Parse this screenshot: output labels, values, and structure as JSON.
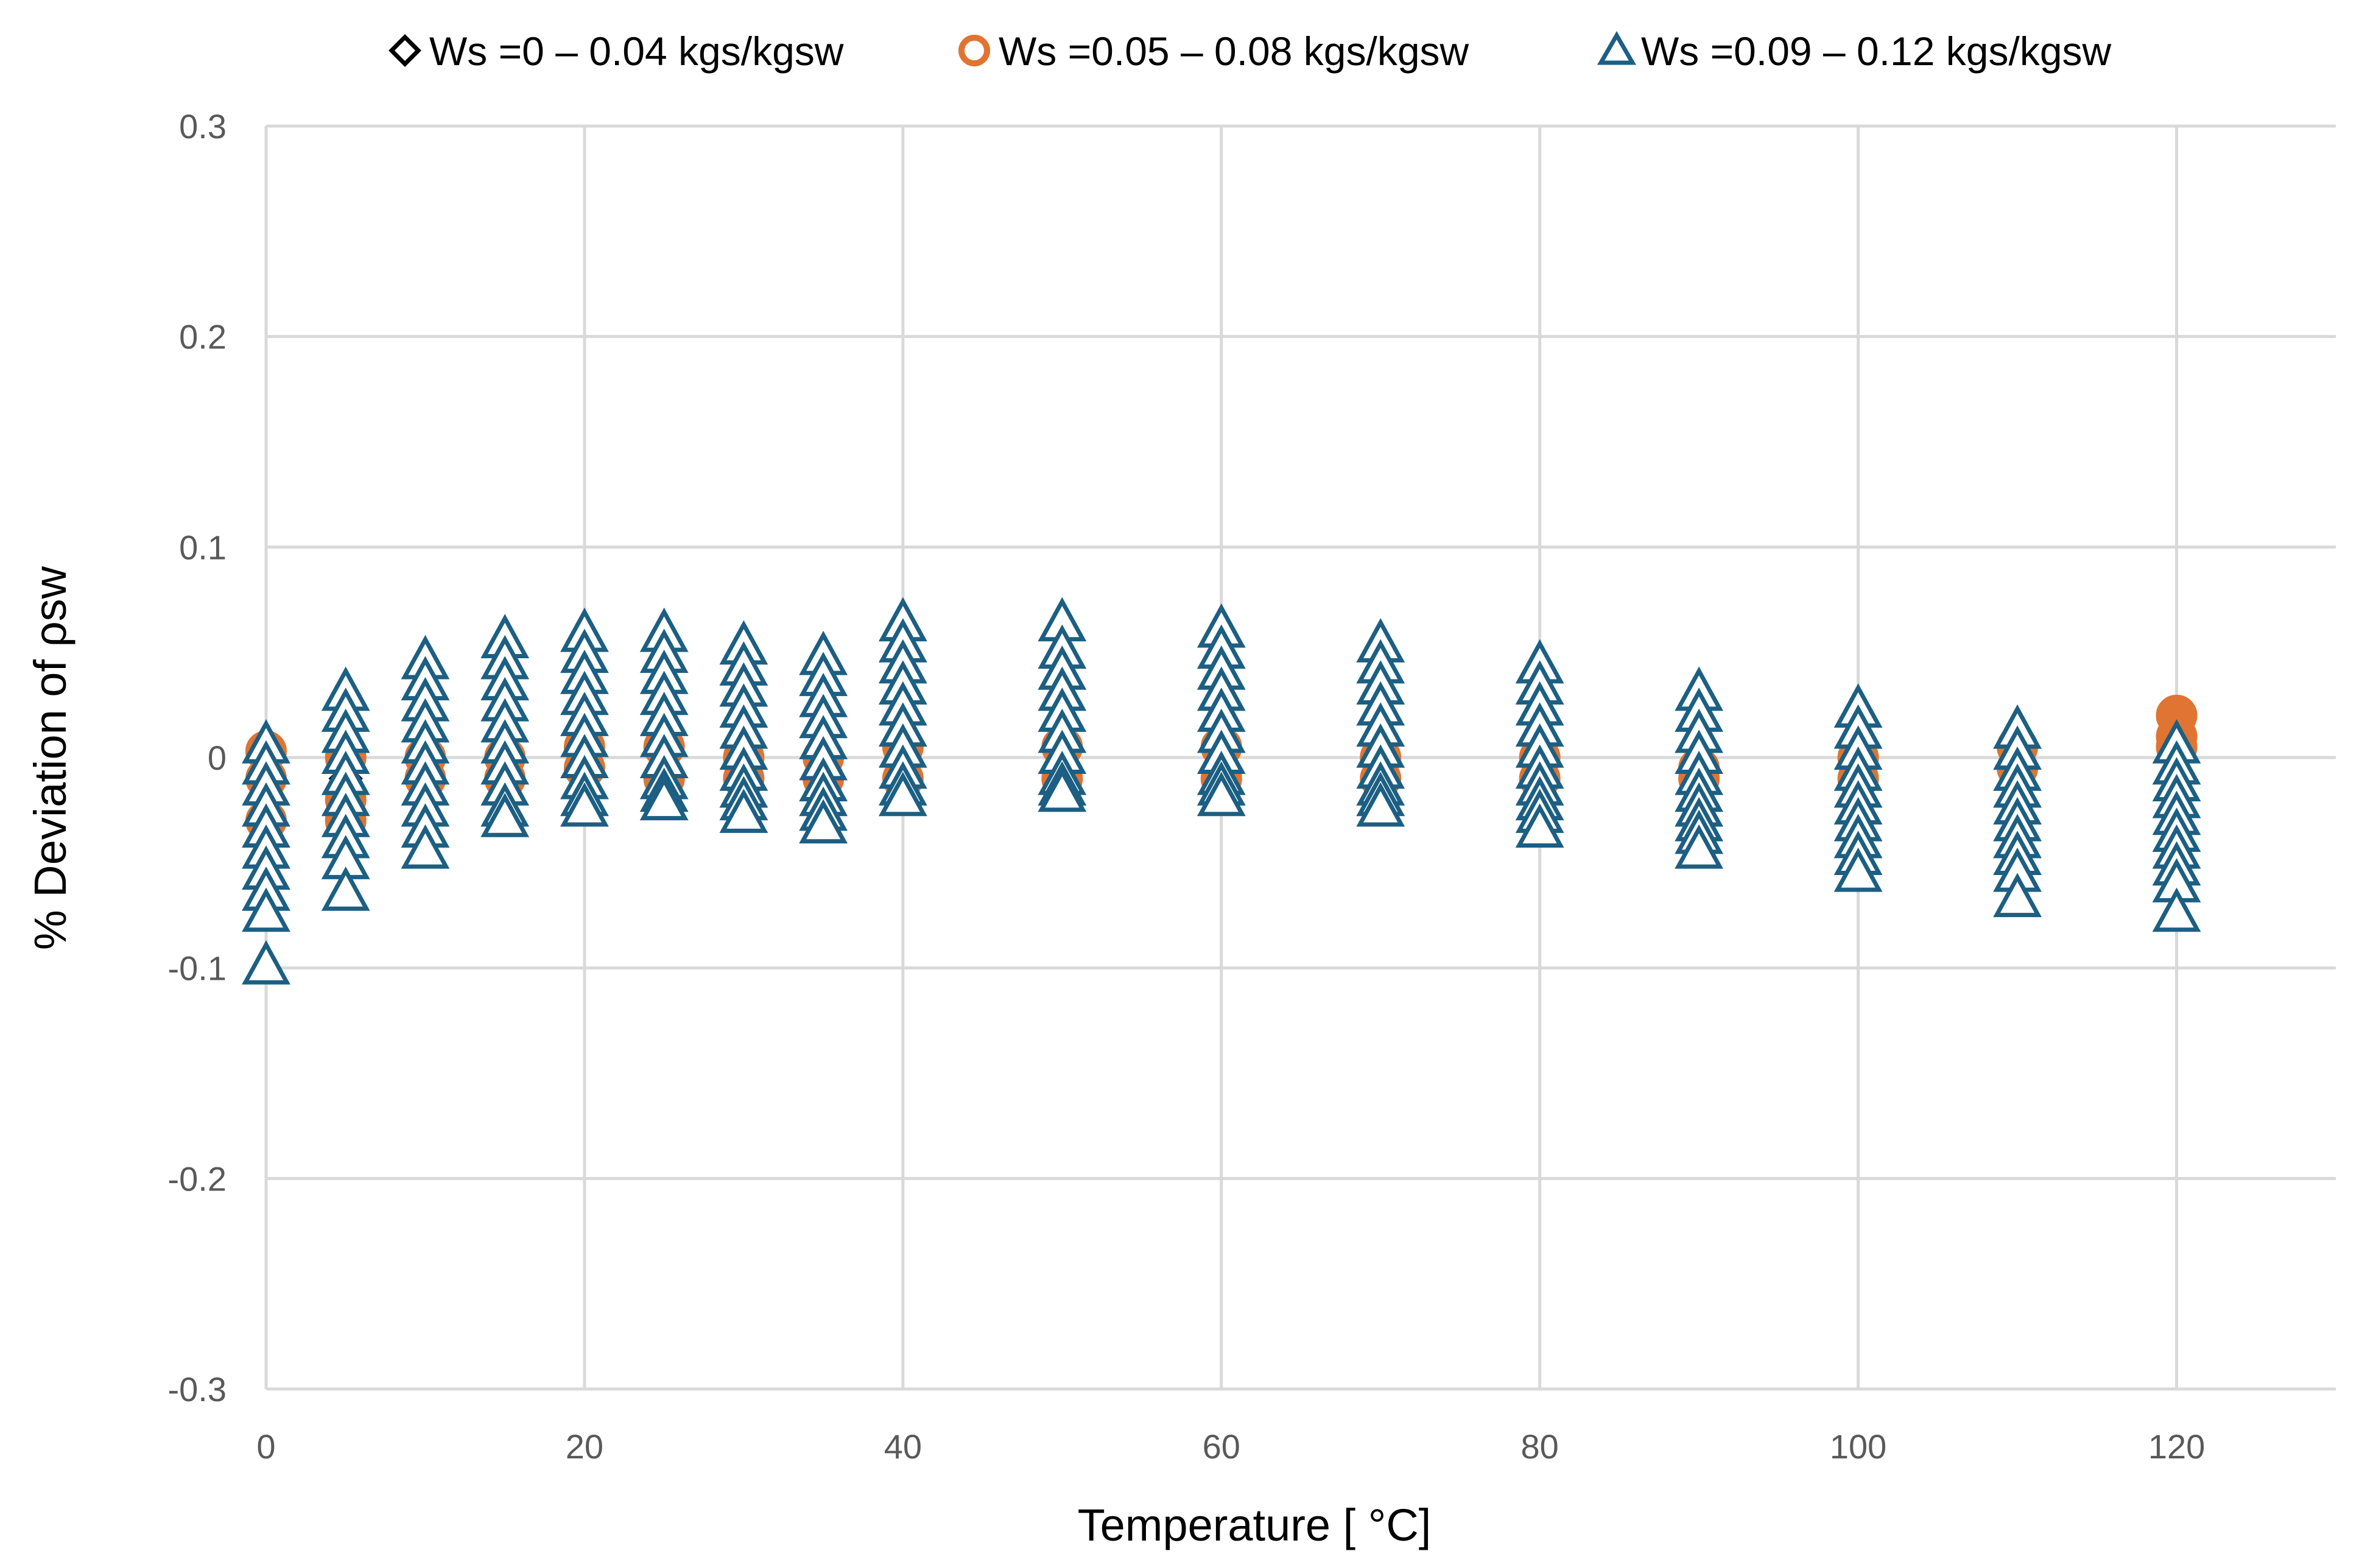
{
  "colors": {
    "series1": "#000000",
    "series2": "#e07432",
    "series3": "#1c5f83",
    "grid": "#d9d9d9",
    "tick_text": "#595959"
  },
  "chart_data": {
    "type": "scatter",
    "title": "",
    "xlabel": "Temperature  [ °C]",
    "ylabel": "% Deviation of ρsw",
    "xlim": [
      0,
      130
    ],
    "ylim": [
      -0.3,
      0.3
    ],
    "x_ticks": [
      0,
      20,
      40,
      60,
      80,
      100,
      120
    ],
    "x_tick_labels": [
      "0",
      "20",
      "40",
      "60",
      "80",
      "100",
      "120"
    ],
    "y_ticks": [
      -0.3,
      -0.2,
      -0.1,
      0,
      0.1,
      0.2,
      0.3
    ],
    "y_tick_labels": [
      "-0.3",
      "-0.2",
      "-0.1",
      "0",
      "0.1",
      "0.2",
      "0.3"
    ],
    "grid": true,
    "legend_position": "top-center",
    "series": [
      {
        "name": "Ws =0 – 0.04 kgs/kgsw",
        "marker": "diamond",
        "points": [
          {
            "x": 0,
            "y": -0.01
          },
          {
            "x": 0,
            "y": -0.02
          },
          {
            "x": 0,
            "y": 0.0
          },
          {
            "x": 5,
            "y": -0.01
          },
          {
            "x": 5,
            "y": 0.0
          },
          {
            "x": 10,
            "y": 0.0
          },
          {
            "x": 10,
            "y": -0.01
          },
          {
            "x": 15,
            "y": 0.0
          },
          {
            "x": 15,
            "y": 0.005
          },
          {
            "x": 20,
            "y": 0.005
          },
          {
            "x": 20,
            "y": 0.0
          },
          {
            "x": 25,
            "y": 0.005
          },
          {
            "x": 25,
            "y": 0.0
          },
          {
            "x": 30,
            "y": 0.0
          },
          {
            "x": 30,
            "y": 0.005
          },
          {
            "x": 35,
            "y": 0.0
          },
          {
            "x": 35,
            "y": -0.005
          },
          {
            "x": 40,
            "y": 0.005
          },
          {
            "x": 40,
            "y": 0.0
          },
          {
            "x": 50,
            "y": 0.005
          },
          {
            "x": 50,
            "y": 0.0
          },
          {
            "x": 60,
            "y": 0.005
          },
          {
            "x": 60,
            "y": 0.0
          },
          {
            "x": 70,
            "y": 0.0
          },
          {
            "x": 70,
            "y": 0.005
          },
          {
            "x": 80,
            "y": 0.0
          },
          {
            "x": 80,
            "y": -0.005
          },
          {
            "x": 90,
            "y": 0.0
          },
          {
            "x": 90,
            "y": -0.005
          },
          {
            "x": 100,
            "y": 0.0
          },
          {
            "x": 100,
            "y": -0.005
          },
          {
            "x": 110,
            "y": 0.0
          },
          {
            "x": 110,
            "y": 0.005
          },
          {
            "x": 120,
            "y": 0.02
          },
          {
            "x": 120,
            "y": 0.01
          },
          {
            "x": 120,
            "y": 0.0
          }
        ]
      },
      {
        "name": "Ws =0.05 – 0.08 kgs/kgsw",
        "marker": "circle",
        "points": [
          {
            "x": 0,
            "y": 0.003
          },
          {
            "x": 0,
            "y": -0.01
          },
          {
            "x": 0,
            "y": -0.03
          },
          {
            "x": 5,
            "y": 0.0
          },
          {
            "x": 5,
            "y": -0.02
          },
          {
            "x": 5,
            "y": -0.03
          },
          {
            "x": 10,
            "y": 0.0
          },
          {
            "x": 10,
            "y": -0.01
          },
          {
            "x": 15,
            "y": 0.0
          },
          {
            "x": 15,
            "y": -0.01
          },
          {
            "x": 20,
            "y": 0.005
          },
          {
            "x": 20,
            "y": -0.005
          },
          {
            "x": 25,
            "y": 0.005
          },
          {
            "x": 25,
            "y": -0.01
          },
          {
            "x": 30,
            "y": 0.0
          },
          {
            "x": 30,
            "y": -0.01
          },
          {
            "x": 35,
            "y": 0.0
          },
          {
            "x": 35,
            "y": -0.01
          },
          {
            "x": 40,
            "y": 0.005
          },
          {
            "x": 40,
            "y": -0.01
          },
          {
            "x": 50,
            "y": 0.005
          },
          {
            "x": 50,
            "y": -0.01
          },
          {
            "x": 60,
            "y": 0.005
          },
          {
            "x": 60,
            "y": -0.01
          },
          {
            "x": 70,
            "y": 0.0
          },
          {
            "x": 70,
            "y": -0.01
          },
          {
            "x": 80,
            "y": 0.0
          },
          {
            "x": 80,
            "y": -0.01
          },
          {
            "x": 90,
            "y": -0.005
          },
          {
            "x": 90,
            "y": -0.01
          },
          {
            "x": 100,
            "y": 0.0
          },
          {
            "x": 100,
            "y": -0.01
          },
          {
            "x": 110,
            "y": 0.005
          },
          {
            "x": 110,
            "y": -0.005
          },
          {
            "x": 120,
            "y": 0.02
          },
          {
            "x": 120,
            "y": 0.01
          },
          {
            "x": 120,
            "y": 0.005
          }
        ]
      },
      {
        "name": "Ws =0.09 – 0.12 kgs/kgsw",
        "marker": "triangle",
        "points": [
          {
            "x": 0,
            "y": 0.005
          },
          {
            "x": 0,
            "y": -0.005
          },
          {
            "x": 0,
            "y": -0.015
          },
          {
            "x": 0,
            "y": -0.025
          },
          {
            "x": 0,
            "y": -0.035
          },
          {
            "x": 0,
            "y": -0.045
          },
          {
            "x": 0,
            "y": -0.055
          },
          {
            "x": 0,
            "y": -0.065
          },
          {
            "x": 0,
            "y": -0.075
          },
          {
            "x": 0,
            "y": -0.1
          },
          {
            "x": 5,
            "y": 0.03
          },
          {
            "x": 5,
            "y": 0.02
          },
          {
            "x": 5,
            "y": 0.01
          },
          {
            "x": 5,
            "y": 0.0
          },
          {
            "x": 5,
            "y": -0.01
          },
          {
            "x": 5,
            "y": -0.02
          },
          {
            "x": 5,
            "y": -0.03
          },
          {
            "x": 5,
            "y": -0.04
          },
          {
            "x": 5,
            "y": -0.05
          },
          {
            "x": 5,
            "y": -0.065
          },
          {
            "x": 10,
            "y": 0.045
          },
          {
            "x": 10,
            "y": 0.035
          },
          {
            "x": 10,
            "y": 0.025
          },
          {
            "x": 10,
            "y": 0.015
          },
          {
            "x": 10,
            "y": 0.005
          },
          {
            "x": 10,
            "y": -0.005
          },
          {
            "x": 10,
            "y": -0.015
          },
          {
            "x": 10,
            "y": -0.025
          },
          {
            "x": 10,
            "y": -0.035
          },
          {
            "x": 10,
            "y": -0.045
          },
          {
            "x": 15,
            "y": 0.055
          },
          {
            "x": 15,
            "y": 0.045
          },
          {
            "x": 15,
            "y": 0.035
          },
          {
            "x": 15,
            "y": 0.025
          },
          {
            "x": 15,
            "y": 0.015
          },
          {
            "x": 15,
            "y": 0.005
          },
          {
            "x": 15,
            "y": -0.005
          },
          {
            "x": 15,
            "y": -0.015
          },
          {
            "x": 15,
            "y": -0.025
          },
          {
            "x": 15,
            "y": -0.03
          },
          {
            "x": 20,
            "y": 0.058
          },
          {
            "x": 20,
            "y": 0.048
          },
          {
            "x": 20,
            "y": 0.038
          },
          {
            "x": 20,
            "y": 0.028
          },
          {
            "x": 20,
            "y": 0.018
          },
          {
            "x": 20,
            "y": 0.008
          },
          {
            "x": 20,
            "y": -0.002
          },
          {
            "x": 20,
            "y": -0.012
          },
          {
            "x": 20,
            "y": -0.02
          },
          {
            "x": 20,
            "y": -0.025
          },
          {
            "x": 25,
            "y": 0.058
          },
          {
            "x": 25,
            "y": 0.048
          },
          {
            "x": 25,
            "y": 0.038
          },
          {
            "x": 25,
            "y": 0.028
          },
          {
            "x": 25,
            "y": 0.018
          },
          {
            "x": 25,
            "y": 0.008
          },
          {
            "x": 25,
            "y": -0.002
          },
          {
            "x": 25,
            "y": -0.012
          },
          {
            "x": 25,
            "y": -0.018
          },
          {
            "x": 25,
            "y": -0.022
          },
          {
            "x": 30,
            "y": 0.052
          },
          {
            "x": 30,
            "y": 0.042
          },
          {
            "x": 30,
            "y": 0.032
          },
          {
            "x": 30,
            "y": 0.022
          },
          {
            "x": 30,
            "y": 0.012
          },
          {
            "x": 30,
            "y": 0.002
          },
          {
            "x": 30,
            "y": -0.008
          },
          {
            "x": 30,
            "y": -0.016
          },
          {
            "x": 30,
            "y": -0.022
          },
          {
            "x": 30,
            "y": -0.028
          },
          {
            "x": 35,
            "y": 0.047
          },
          {
            "x": 35,
            "y": 0.037
          },
          {
            "x": 35,
            "y": 0.027
          },
          {
            "x": 35,
            "y": 0.017
          },
          {
            "x": 35,
            "y": 0.007
          },
          {
            "x": 35,
            "y": -0.003
          },
          {
            "x": 35,
            "y": -0.013
          },
          {
            "x": 35,
            "y": -0.02
          },
          {
            "x": 35,
            "y": -0.027
          },
          {
            "x": 35,
            "y": -0.033
          },
          {
            "x": 40,
            "y": 0.063
          },
          {
            "x": 40,
            "y": 0.053
          },
          {
            "x": 40,
            "y": 0.043
          },
          {
            "x": 40,
            "y": 0.033
          },
          {
            "x": 40,
            "y": 0.023
          },
          {
            "x": 40,
            "y": 0.013
          },
          {
            "x": 40,
            "y": 0.003
          },
          {
            "x": 40,
            "y": -0.007
          },
          {
            "x": 40,
            "y": -0.015
          },
          {
            "x": 40,
            "y": -0.02
          },
          {
            "x": 50,
            "y": 0.063
          },
          {
            "x": 50,
            "y": 0.05
          },
          {
            "x": 50,
            "y": 0.04
          },
          {
            "x": 50,
            "y": 0.03
          },
          {
            "x": 50,
            "y": 0.02
          },
          {
            "x": 50,
            "y": 0.01
          },
          {
            "x": 50,
            "y": 0.0
          },
          {
            "x": 50,
            "y": -0.01
          },
          {
            "x": 50,
            "y": -0.015
          },
          {
            "x": 50,
            "y": -0.018
          },
          {
            "x": 60,
            "y": 0.06
          },
          {
            "x": 60,
            "y": 0.05
          },
          {
            "x": 60,
            "y": 0.04
          },
          {
            "x": 60,
            "y": 0.03
          },
          {
            "x": 60,
            "y": 0.02
          },
          {
            "x": 60,
            "y": 0.01
          },
          {
            "x": 60,
            "y": 0.0
          },
          {
            "x": 60,
            "y": -0.01
          },
          {
            "x": 60,
            "y": -0.015
          },
          {
            "x": 60,
            "y": -0.02
          },
          {
            "x": 70,
            "y": 0.053
          },
          {
            "x": 70,
            "y": 0.043
          },
          {
            "x": 70,
            "y": 0.033
          },
          {
            "x": 70,
            "y": 0.023
          },
          {
            "x": 70,
            "y": 0.013
          },
          {
            "x": 70,
            "y": 0.003
          },
          {
            "x": 70,
            "y": -0.007
          },
          {
            "x": 70,
            "y": -0.015
          },
          {
            "x": 70,
            "y": -0.02
          },
          {
            "x": 70,
            "y": -0.025
          },
          {
            "x": 80,
            "y": 0.043
          },
          {
            "x": 80,
            "y": 0.033
          },
          {
            "x": 80,
            "y": 0.023
          },
          {
            "x": 80,
            "y": 0.013
          },
          {
            "x": 80,
            "y": 0.003
          },
          {
            "x": 80,
            "y": -0.007
          },
          {
            "x": 80,
            "y": -0.015
          },
          {
            "x": 80,
            "y": -0.022
          },
          {
            "x": 80,
            "y": -0.028
          },
          {
            "x": 80,
            "y": -0.035
          },
          {
            "x": 90,
            "y": 0.03
          },
          {
            "x": 90,
            "y": 0.02
          },
          {
            "x": 90,
            "y": 0.01
          },
          {
            "x": 90,
            "y": 0.0
          },
          {
            "x": 90,
            "y": -0.01
          },
          {
            "x": 90,
            "y": -0.018
          },
          {
            "x": 90,
            "y": -0.025
          },
          {
            "x": 90,
            "y": -0.032
          },
          {
            "x": 90,
            "y": -0.038
          },
          {
            "x": 90,
            "y": -0.045
          },
          {
            "x": 100,
            "y": 0.022
          },
          {
            "x": 100,
            "y": 0.012
          },
          {
            "x": 100,
            "y": 0.002
          },
          {
            "x": 100,
            "y": -0.008
          },
          {
            "x": 100,
            "y": -0.016
          },
          {
            "x": 100,
            "y": -0.024
          },
          {
            "x": 100,
            "y": -0.032
          },
          {
            "x": 100,
            "y": -0.04
          },
          {
            "x": 100,
            "y": -0.048
          },
          {
            "x": 100,
            "y": -0.056
          },
          {
            "x": 110,
            "y": 0.012
          },
          {
            "x": 110,
            "y": 0.002
          },
          {
            "x": 110,
            "y": -0.008
          },
          {
            "x": 110,
            "y": -0.016
          },
          {
            "x": 110,
            "y": -0.024
          },
          {
            "x": 110,
            "y": -0.032
          },
          {
            "x": 110,
            "y": -0.04
          },
          {
            "x": 110,
            "y": -0.048
          },
          {
            "x": 110,
            "y": -0.056
          },
          {
            "x": 110,
            "y": -0.068
          },
          {
            "x": 120,
            "y": 0.005
          },
          {
            "x": 120,
            "y": -0.005
          },
          {
            "x": 120,
            "y": -0.013
          },
          {
            "x": 120,
            "y": -0.021
          },
          {
            "x": 120,
            "y": -0.029
          },
          {
            "x": 120,
            "y": -0.037
          },
          {
            "x": 120,
            "y": -0.045
          },
          {
            "x": 120,
            "y": -0.053
          },
          {
            "x": 120,
            "y": -0.061
          },
          {
            "x": 120,
            "y": -0.075
          }
        ]
      }
    ]
  }
}
